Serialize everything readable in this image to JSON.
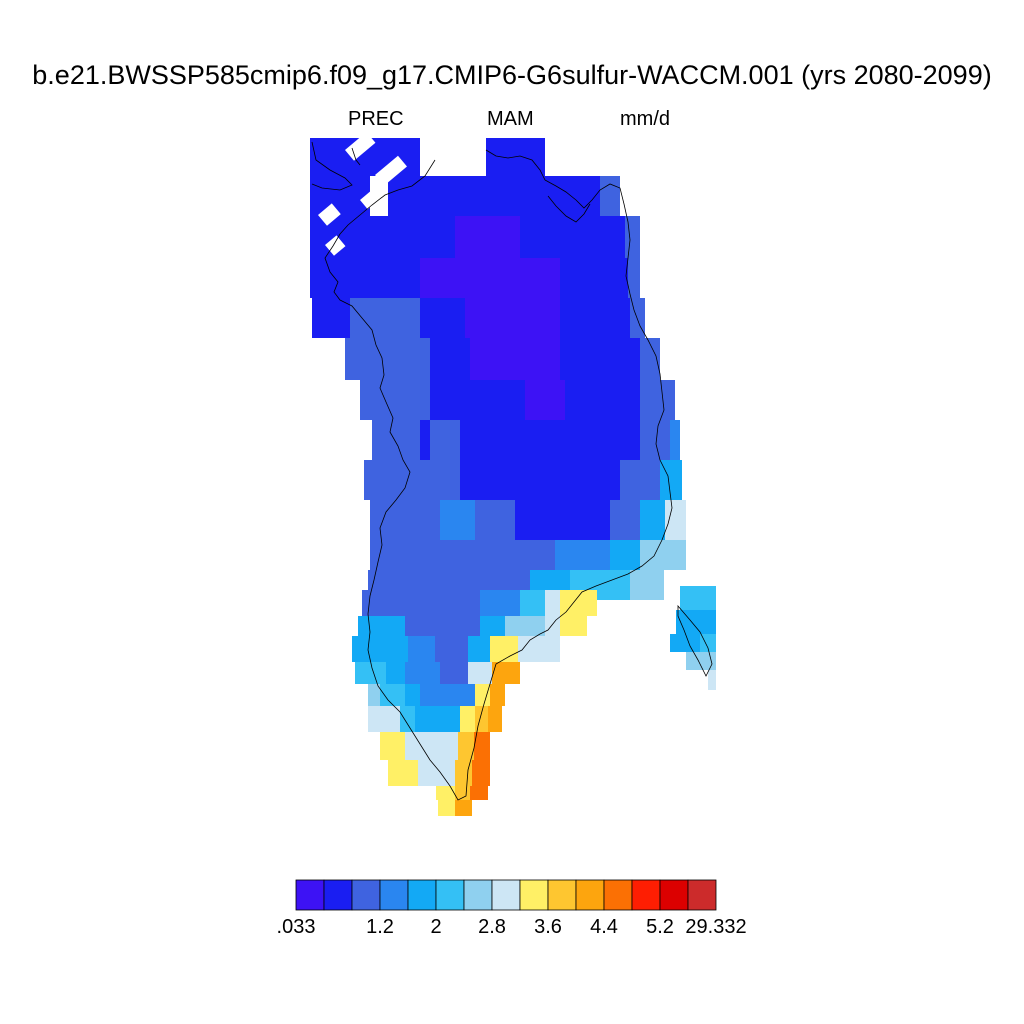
{
  "title": "b.e21.BWSSP585cmip6.f09_g17.CMIP6-G6sulfur-WACCM.001 (yrs 2080-2099)",
  "variable": "PREC",
  "season": "MAM",
  "units": "mm/d",
  "colorbar": {
    "colors": [
      "#3d12f5",
      "#1a1ef2",
      "#3f63e0",
      "#2a86f0",
      "#13a9f5",
      "#34c0f5",
      "#8fd0ef",
      "#cde6f5",
      "#fff066",
      "#fec630",
      "#fda50e",
      "#fb7004",
      "#fe1e02",
      "#dc0000",
      "#cc2b2b"
    ],
    "labels": [
      ".033",
      "1.2",
      "2",
      "2.8",
      "3.6",
      "4.4",
      "5.2",
      "29.332"
    ]
  },
  "map_field": {
    "description_levels": "index into colorbar.colors per grid cell",
    "cells": "drawn by script"
  }
}
